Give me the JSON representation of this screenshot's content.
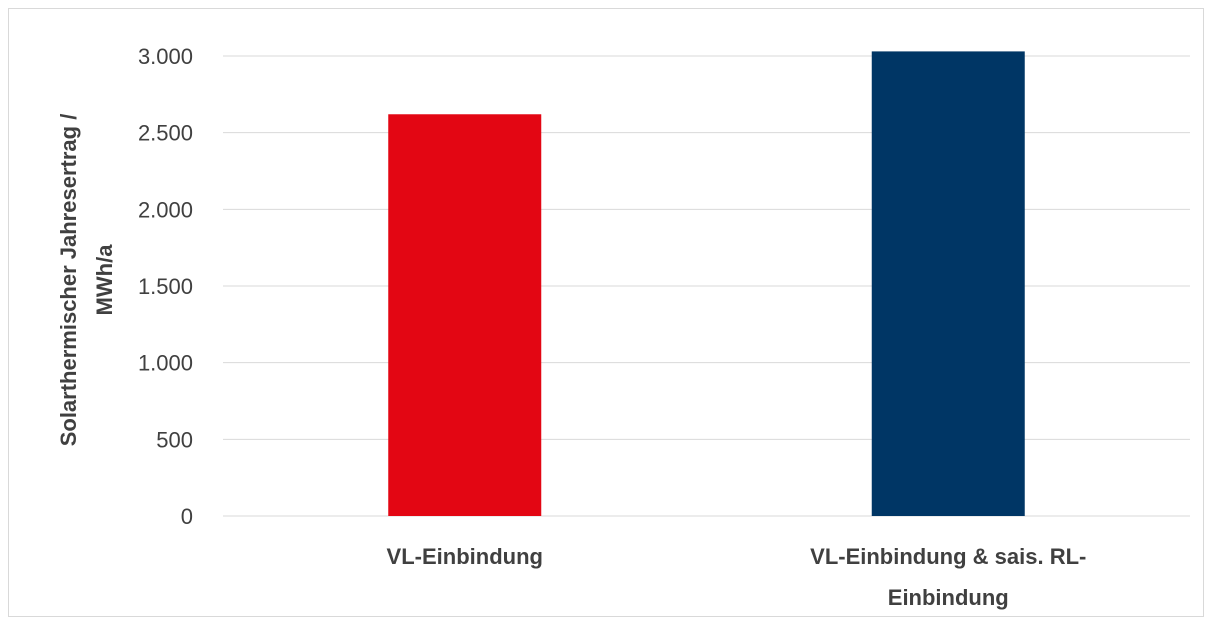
{
  "chart_data": {
    "type": "bar",
    "categories": [
      "VL-Einbindung",
      "VL-Einbindung & sais. RL-Einbindung"
    ],
    "category_label_lines": [
      [
        "VL-Einbindung"
      ],
      [
        "VL-Einbindung & sais. RL-",
        "Einbindung"
      ]
    ],
    "values": [
      2620,
      3030
    ],
    "colors": [
      "#e30613",
      "#003665"
    ],
    "ylabel_lines": [
      "Solarthermischer Jahresertrag /",
      "MWh/a"
    ],
    "xlabel": "",
    "ylim": [
      0,
      3000
    ],
    "yticks": [
      0,
      500,
      1000,
      1500,
      2000,
      2500,
      3000
    ],
    "ytick_labels": [
      "0",
      "500",
      "1.000",
      "1.500",
      "2.000",
      "2.500",
      "3.000"
    ],
    "grid": true,
    "legend": "none"
  }
}
